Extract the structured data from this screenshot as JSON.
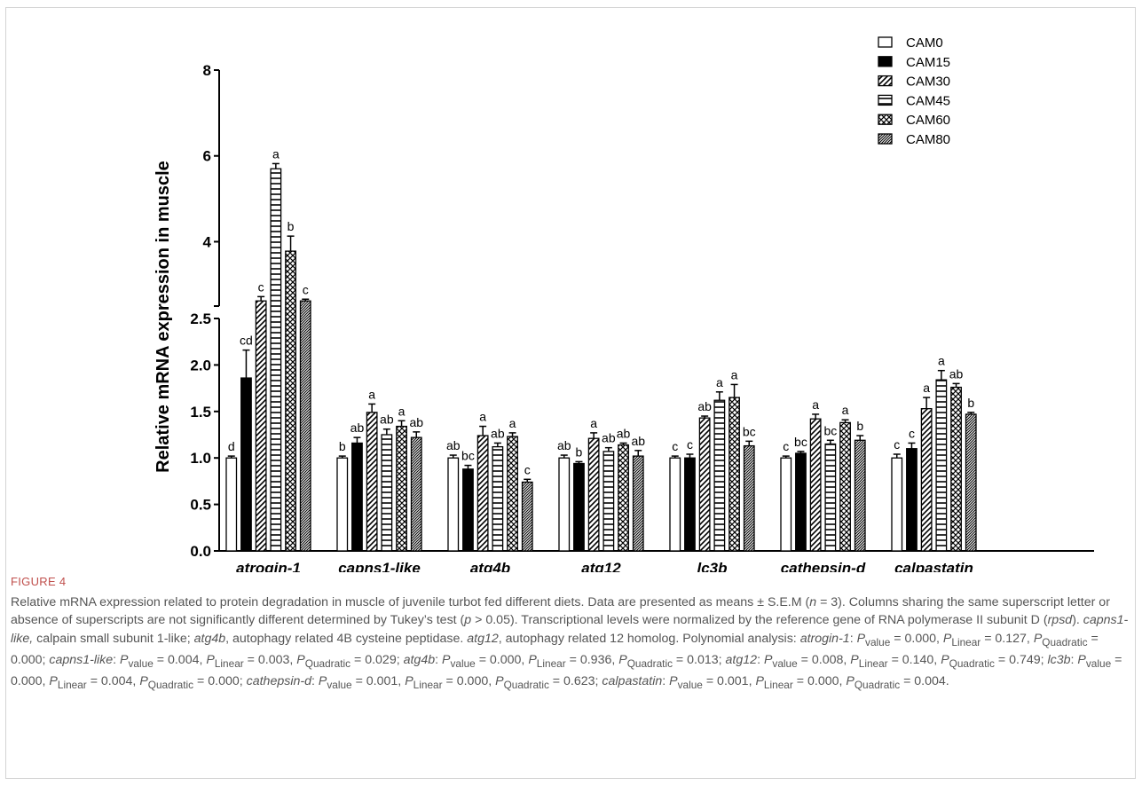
{
  "figure": {
    "label": "FIGURE 4",
    "caption_html": "Relative mRNA expression related to protein degradation in muscle of juvenile turbot fed different diets. Data are presented as means ± S.E.M (<i>n</i> = 3). Columns sharing the same superscript letter or absence of superscripts are not significantly different determined by Tukey’s test (<i>p</i> &gt; 0.05). Transcriptional levels were normalized by the reference gene of RNA polymerase II subunit D (<i>rpsd</i>). <i>capns1-like,</i> calpain small subunit 1-like; <i>atg4b</i>, autophagy related 4B cysteine peptidase. <i>atg12</i>, autophagy related 12 homolog. Polynomial analysis: <i>atrogin-1</i>: <i>P</i><sub>value</sub> = 0.000, <i>P</i><sub>Linear</sub> = 0.127, <i>P</i><sub>Quadratic</sub> = 0.000; <i>capns1-like</i>: <i>P</i><sub>value</sub> = 0.004, <i>P</i><sub>Linear</sub> = 0.003, <i>P</i><sub>Quadratic</sub> = 0.029; <i>atg4b</i>: <i>P</i><sub>value</sub> = 0.000, <i>P</i><sub>Linear</sub> = 0.936, <i>P</i><sub>Quadratic</sub> = 0.013; <i>atg12</i>: <i>P</i><sub>value</sub> = 0.008, <i>P</i><sub>Linear</sub> = 0.140, <i>P</i><sub>Quadratic</sub> = 0.749; <i>lc3b</i>: <i>P</i><sub>value</sub> = 0.000, <i>P</i><sub>Linear</sub> = 0.004, <i>P</i><sub>Quadratic</sub> = 0.000; <i>cathepsin-d</i>: <i>P</i><sub>value</sub> = 0.001, <i>P</i><sub>Linear</sub> = 0.000, <i>P</i><sub>Quadratic</sub> = 0.623; <i>calpastatin</i>: <i>P</i><sub>value</sub> = 0.001, <i>P</i><sub>Linear</sub> = 0.000, <i>P</i><sub>Quadratic</sub> = 0.004."
  },
  "chart_data": {
    "type": "bar",
    "title": "",
    "xlabel": "",
    "ylabel": "Relative mRNA expression in muscle",
    "axis_break": {
      "lower_range": [
        0,
        2.5
      ],
      "upper_range": [
        2.5,
        8
      ]
    },
    "ylim": [
      0,
      8
    ],
    "yticks": [
      "0.0",
      "0.5",
      "1.0",
      "1.5",
      "2.0",
      "2.5",
      "4",
      "6",
      "8"
    ],
    "ytick_values": [
      0,
      0.5,
      1.0,
      1.5,
      2.0,
      2.5,
      4,
      6,
      8
    ],
    "legend_position": "top-right",
    "categories": [
      "atrogin-1",
      "capns1-like",
      "atg4b",
      "atg12",
      "lc3b",
      "cathepsin-d",
      "calpastatin"
    ],
    "series": [
      {
        "name": "CAM0",
        "pattern": "open",
        "values": [
          1.0,
          1.0,
          1.0,
          1.0,
          1.0,
          1.0,
          1.0
        ],
        "errors": [
          0.02,
          0.02,
          0.03,
          0.03,
          0.02,
          0.02,
          0.04
        ],
        "labels": [
          "d",
          "b",
          "ab",
          "ab",
          "c",
          "c",
          "c"
        ]
      },
      {
        "name": "CAM15",
        "pattern": "solid",
        "values": [
          1.86,
          1.16,
          0.88,
          0.94,
          1.0,
          1.05,
          1.1
        ],
        "errors": [
          0.3,
          0.06,
          0.04,
          0.02,
          0.04,
          0.02,
          0.06
        ],
        "labels": [
          "cd",
          "ab",
          "bc",
          "b",
          "c",
          "bc",
          "c"
        ]
      },
      {
        "name": "CAM30",
        "pattern": "diagonal",
        "values": [
          2.62,
          1.49,
          1.24,
          1.21,
          1.43,
          1.42,
          1.53
        ],
        "errors": [
          0.1,
          0.09,
          0.1,
          0.06,
          0.02,
          0.05,
          0.12
        ],
        "labels": [
          "c",
          "a",
          "a",
          "a",
          "ab",
          "a",
          "a"
        ]
      },
      {
        "name": "CAM45",
        "pattern": "horizontal",
        "values": [
          5.7,
          1.25,
          1.12,
          1.07,
          1.62,
          1.15,
          1.84
        ],
        "errors": [
          0.12,
          0.06,
          0.04,
          0.04,
          0.09,
          0.04,
          0.1
        ],
        "labels": [
          "a",
          "ab",
          "ab",
          "ab",
          "a",
          "bc",
          "a"
        ]
      },
      {
        "name": "CAM60",
        "pattern": "crosshatch",
        "values": [
          3.78,
          1.34,
          1.23,
          1.14,
          1.65,
          1.38,
          1.76
        ],
        "errors": [
          0.35,
          0.06,
          0.04,
          0.02,
          0.14,
          0.03,
          0.04
        ],
        "labels": [
          "b",
          "a",
          "a",
          "ab",
          "a",
          "a",
          "ab"
        ]
      },
      {
        "name": "CAM80",
        "pattern": "dense-diagonal",
        "values": [
          2.62,
          1.22,
          0.74,
          1.02,
          1.13,
          1.19,
          1.47
        ],
        "errors": [
          0.04,
          0.06,
          0.03,
          0.06,
          0.05,
          0.05,
          0.02
        ],
        "labels": [
          "c",
          "ab",
          "c",
          "ab",
          "bc",
          "b",
          "b"
        ]
      }
    ]
  }
}
